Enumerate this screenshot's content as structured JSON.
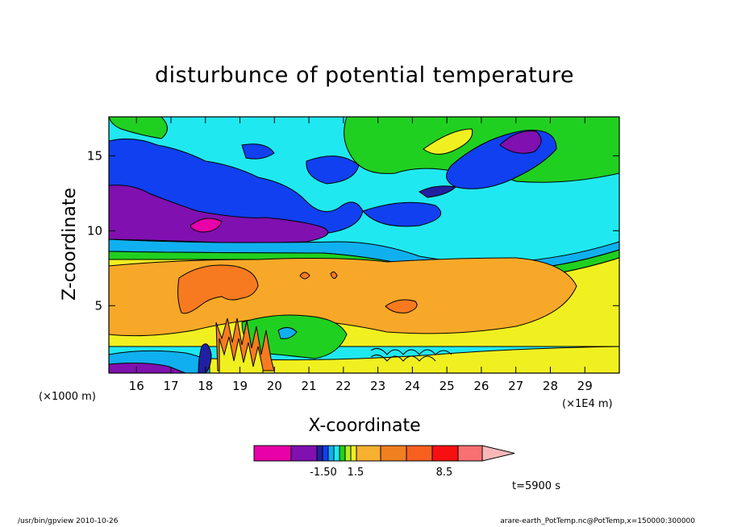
{
  "chart_data": {
    "type": "heatmap",
    "title": "disturbunce of potential temperature",
    "xlabel": "X-coordinate",
    "ylabel": "Z-coordinate",
    "x_unit_left": "(×1000 m)",
    "x_unit_right": "(×1E4 m)",
    "xlim": [
      15.2,
      30.0
    ],
    "ylim": [
      0.5,
      17.6
    ],
    "x_ticks": [
      "16",
      "17",
      "18",
      "19",
      "20",
      "21",
      "22",
      "23",
      "24",
      "25",
      "26",
      "27",
      "28",
      "29"
    ],
    "x_tick_values": [
      16,
      17,
      18,
      19,
      20,
      21,
      22,
      23,
      24,
      25,
      26,
      27,
      28,
      29
    ],
    "y_ticks": [
      "5",
      "10",
      "15"
    ],
    "y_tick_values": [
      5,
      10,
      15
    ],
    "colorbar": {
      "labels": [
        "-1.50",
        "1.5",
        "8.5"
      ],
      "colors": [
        "#e800a8",
        "#8010b0",
        "#2020a0",
        "#1040f0",
        "#10b0f0",
        "#20e8f0",
        "#20d020",
        "#b0f020",
        "#f0f020",
        "#f8b030",
        "#f08020",
        "#f86020",
        "#f81010",
        "#f87070",
        "#f8b8b8"
      ]
    },
    "time_label": "t=5900 s",
    "regions": [
      {
        "name": "low-level-orange-layer",
        "x": [
          15.2,
          29.0
        ],
        "z": [
          2.5,
          8.2
        ],
        "value_class": "positive-warm",
        "color": "#f8a828"
      },
      {
        "name": "warm-core-west",
        "x": [
          17.3,
          19.6
        ],
        "z": [
          4.3,
          7.5
        ],
        "value_class": "positive-strong",
        "color": "#f87a20"
      },
      {
        "name": "warm-core-east",
        "x": [
          23.6,
          24.4
        ],
        "z": [
          4.5,
          5.3
        ],
        "value_class": "positive-strong",
        "color": "#f87a20"
      },
      {
        "name": "cold-layer-upper",
        "x": [
          15.2,
          21.0
        ],
        "z": [
          9.2,
          12.8
        ],
        "value_class": "negative",
        "color": "#8010b0"
      },
      {
        "name": "cold-core-magenta",
        "x": [
          17.7,
          18.5
        ],
        "z": [
          10.0,
          10.8
        ],
        "value_class": "negative-strong",
        "color": "#e800a8"
      },
      {
        "name": "upper-purple-blob",
        "x": [
          26.4,
          27.4
        ],
        "z": [
          15.2,
          16.6
        ],
        "value_class": "negative",
        "color": "#8010b0"
      }
    ]
  },
  "footer": {
    "left": "/usr/bin/gpview   2010-10-26",
    "right": "arare-earth_PotTemp.nc@PotTemp,x=150000:300000"
  }
}
